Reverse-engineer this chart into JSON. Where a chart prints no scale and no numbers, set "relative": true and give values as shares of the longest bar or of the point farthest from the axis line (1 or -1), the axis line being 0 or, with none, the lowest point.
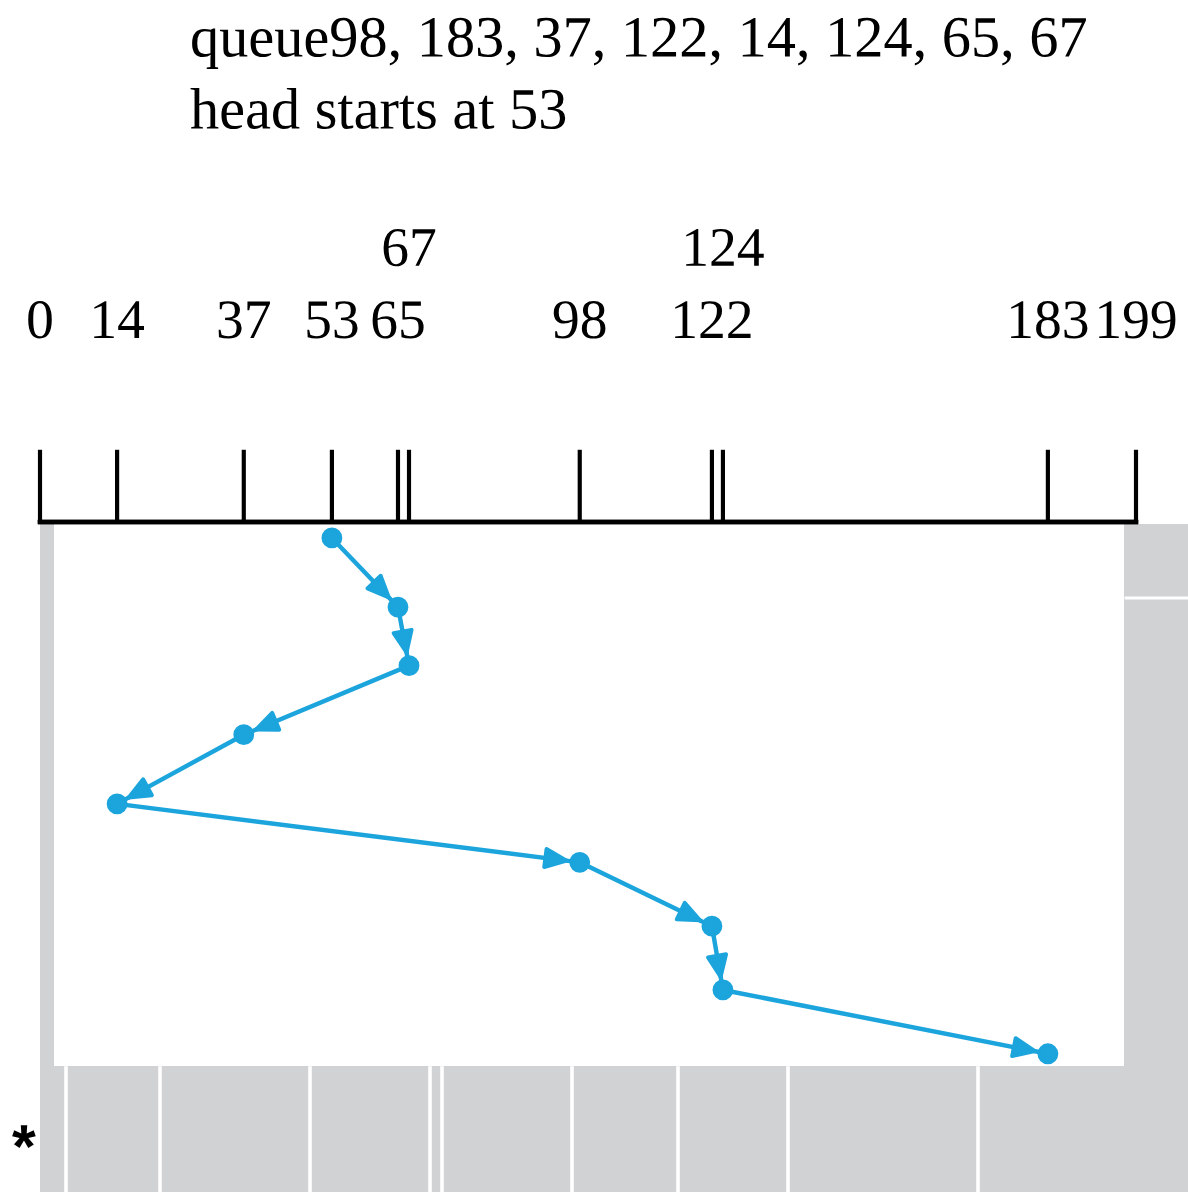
{
  "chart_data": {
    "type": "line",
    "title": "queue98, 183, 37, 122, 14, 124, 65, 67",
    "subtitle": "head starts at 53",
    "annotations": [
      "*"
    ],
    "relative": true,
    "xlim": [
      0,
      199
    ],
    "xticks": [
      0,
      14,
      37,
      53,
      65,
      98,
      122,
      183,
      199
    ],
    "x2lim": [
      0,
      199
    ],
    "x2ticks": [
      67,
      124
    ],
    "marker": "circle",
    "line_style": "solid",
    "series": [
      {
        "color": "#1ca4dc",
        "x": [
          53,
          65,
          67,
          37,
          14,
          98,
          122,
          124,
          183
        ],
        "values": [
          -0.03,
          -0.16,
          -0.27,
          -0.4,
          -0.53,
          -0.64,
          -0.76,
          -0.88,
          -1
        ]
      }
    ]
  }
}
